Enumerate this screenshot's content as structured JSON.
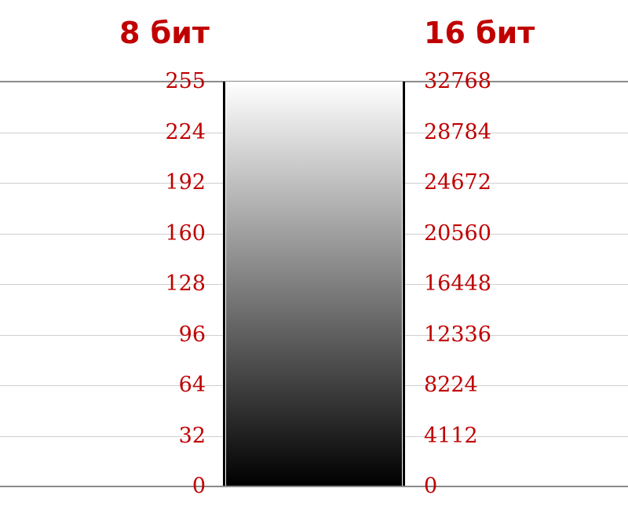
{
  "headings": {
    "left": "8 бит",
    "right": "16 бит"
  },
  "scale_8bit": [
    "255",
    "224",
    "192",
    "160",
    "128",
    "96",
    "64",
    "32",
    "0"
  ],
  "scale_16bit": [
    "32768",
    "28784",
    "24672",
    "20560",
    "16448",
    "12336",
    "8224",
    "4112",
    "0"
  ],
  "colors": {
    "label": "#c00000",
    "heading": "#c00000",
    "gradient_top": "#ffffff",
    "gradient_bottom": "#000000",
    "gridline": "#cfcfcf",
    "edge_line": "#8a8a8a"
  }
}
